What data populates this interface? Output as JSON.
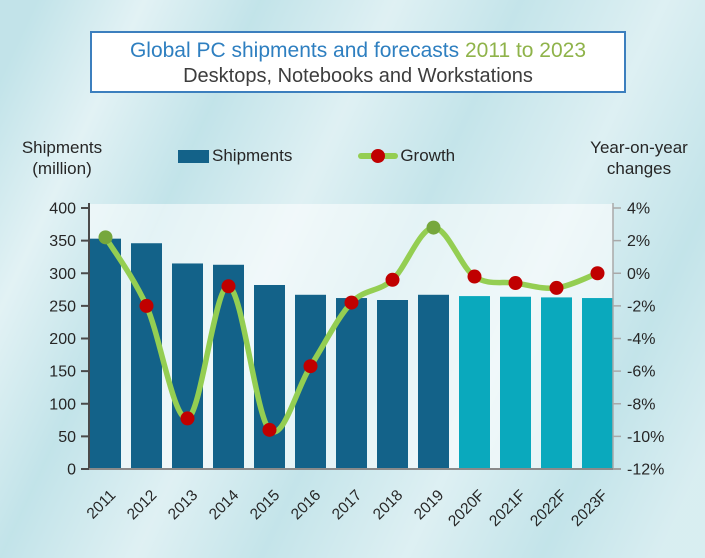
{
  "title": {
    "main": "Global PC shipments and forecasts",
    "range": "2011 to 2023",
    "subtitle": "Desktops, Notebooks and Workstations"
  },
  "left_axis_title": {
    "line1": "Shipments",
    "line2": "(million)"
  },
  "right_axis_title": {
    "line1": "Year-on-year",
    "line2": "changes"
  },
  "legend": {
    "shipments_label": "Shipments",
    "growth_label": "Growth"
  },
  "colors": {
    "bar_actual": "#136289",
    "bar_forecast": "#0aa9bd",
    "line": "#94ce52",
    "dot_negative": "#c00000",
    "dot_positive": "#76a73c",
    "title_main": "#2e7fc0",
    "title_range": "#8fb34a",
    "subtitle_text": "#3d3d3d",
    "axis_text": "#262626",
    "left_axis_line": "#4a4a4a",
    "right_axis_line": "#a9a9a9",
    "bottom_axis_line": "#8a8a8a",
    "title_box_border": "#3c7fbe",
    "background": "#bfe2e8"
  },
  "chart_data": {
    "type": "bar+line combo",
    "title": "Global PC shipments and forecasts 2011 to 2023 — Desktops, Notebooks and Workstations",
    "categories": [
      "2011",
      "2012",
      "2013",
      "2014",
      "2015",
      "2016",
      "2017",
      "2018",
      "2019",
      "2020F",
      "2021F",
      "2022F",
      "2023F"
    ],
    "series": [
      {
        "name": "Shipments",
        "type": "bar",
        "axis": "left",
        "unit": "million units",
        "values": [
          353,
          346,
          315,
          313,
          282,
          267,
          262,
          259,
          267,
          265,
          264,
          263,
          262
        ],
        "forecast_start_index": 9
      },
      {
        "name": "Growth",
        "type": "line",
        "axis": "right",
        "unit": "percent year-on-year",
        "values": [
          2.2,
          -2.0,
          -8.9,
          -0.8,
          -9.6,
          -5.7,
          -1.8,
          -0.4,
          2.8,
          -0.2,
          -0.6,
          -0.9,
          0.0
        ],
        "point_colors": [
          "positive",
          "negative",
          "negative",
          "negative",
          "negative",
          "negative",
          "negative",
          "negative",
          "positive",
          "negative",
          "negative",
          "negative",
          "negative"
        ]
      }
    ],
    "left_axis": {
      "label": "Shipments (million)",
      "min": 0,
      "max": 400,
      "step": 50
    },
    "right_axis": {
      "label": "Year-on-year changes",
      "min": -12,
      "max": 4,
      "step": 2,
      "format": "percent"
    },
    "grid": false,
    "legend_position": "top",
    "x_tick_rotation": -45
  }
}
